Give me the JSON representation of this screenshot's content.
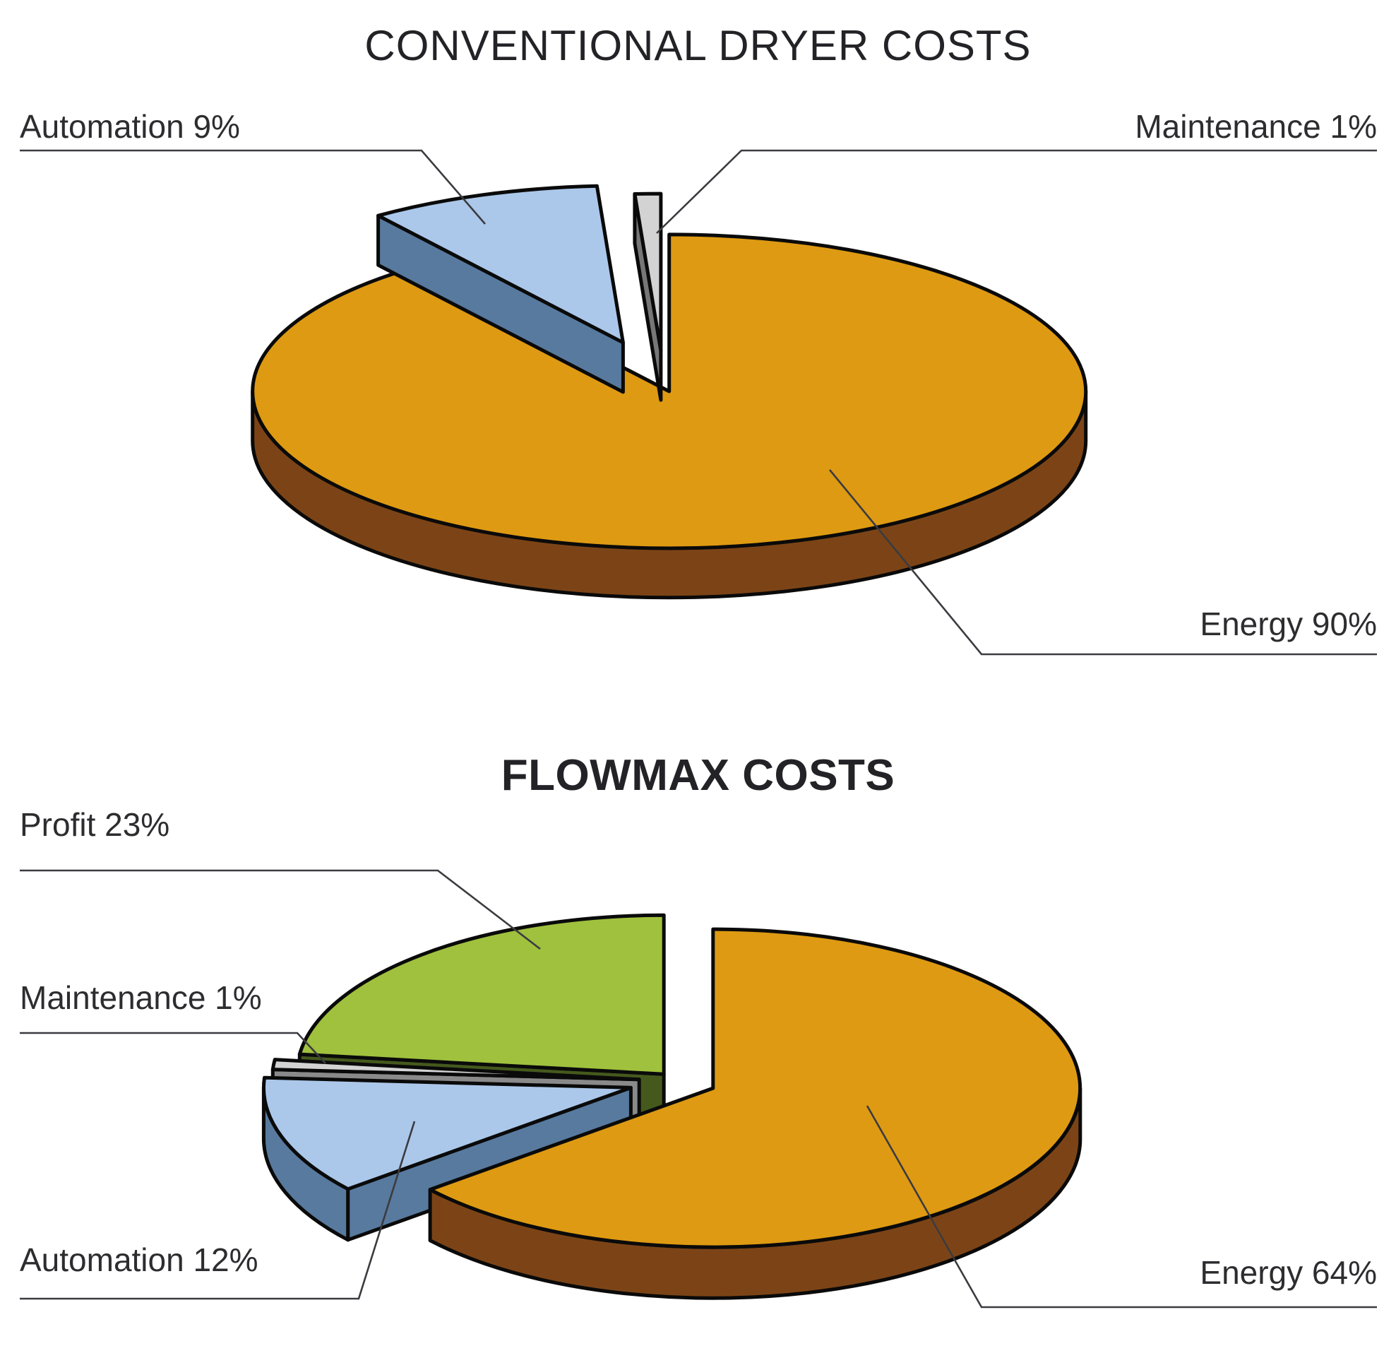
{
  "titles": {
    "chart1": "CONVENTIONAL DRYER COSTS",
    "chart2": "FLOWMAX COSTS"
  },
  "colors": {
    "outline": "#0a0a0a",
    "leader_line": "#3b3b40",
    "label_text": "#2d2d30",
    "title_text": "#232327",
    "background": "#ffffff"
  },
  "chart_data": [
    {
      "type": "pie",
      "style": "3d-exploded",
      "title": "CONVENTIONAL DRYER COSTS",
      "direction": "clockwise",
      "start_angle_deg": 0,
      "legend": "none",
      "slices": [
        {
          "label": "Energy",
          "value_pct": 90,
          "callout": "Energy 90%",
          "top_color": "#DE9A12",
          "side_color": "#7C4416"
        },
        {
          "label": "Automation",
          "value_pct": 9,
          "callout": "Automation 9%",
          "top_color": "#ABC8EA",
          "side_color": "#587A9F"
        },
        {
          "label": "Maintenance",
          "value_pct": 1,
          "callout": "Maintenance 1%",
          "top_color": "#D3D3D3",
          "side_color": "#777777"
        }
      ]
    },
    {
      "type": "pie",
      "style": "3d-exploded",
      "title": "FLOWMAX COSTS",
      "direction": "clockwise",
      "start_angle_deg": 0,
      "legend": "none",
      "slices": [
        {
          "label": "Energy",
          "value_pct": 64,
          "callout": "Energy 64%",
          "top_color": "#DE9A12",
          "side_color": "#7C4416"
        },
        {
          "label": "Automation",
          "value_pct": 12,
          "callout": "Automation 12%",
          "top_color": "#ABC8EA",
          "side_color": "#587A9F"
        },
        {
          "label": "Maintenance",
          "value_pct": 1,
          "callout": "Maintenance 1%",
          "top_color": "#D3D3D3",
          "side_color": "#8A8A8A"
        },
        {
          "label": "Profit",
          "value_pct": 23,
          "callout": "Profit 23%",
          "top_color": "#A0C13D",
          "side_color": "#46591D"
        }
      ]
    }
  ]
}
